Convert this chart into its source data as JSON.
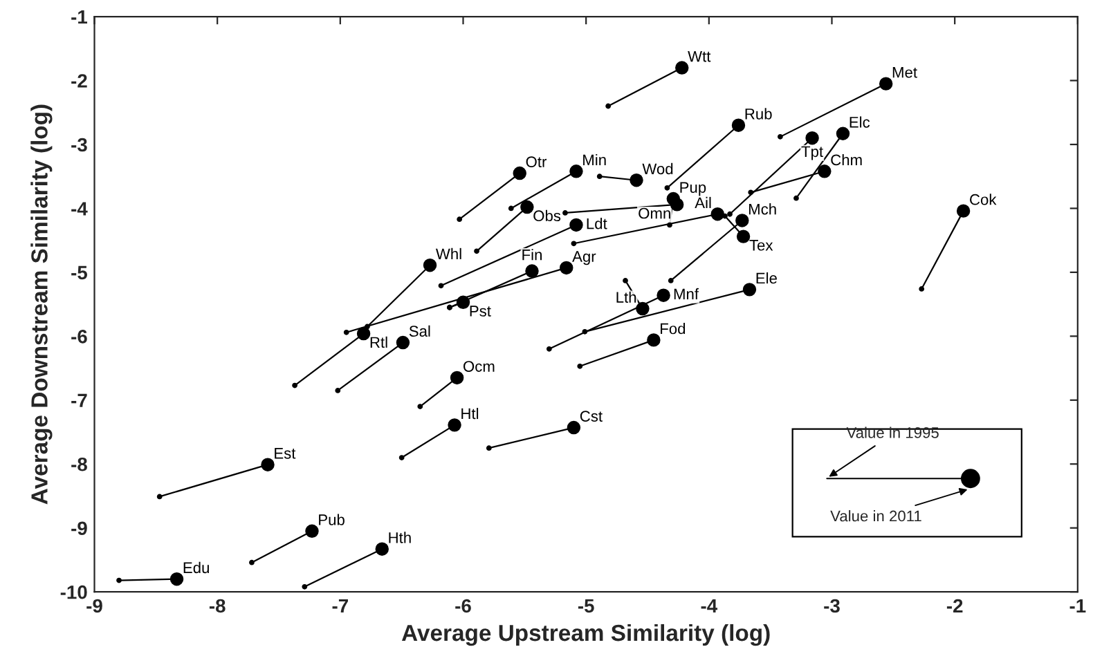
{
  "chart_data": {
    "type": "line",
    "xlabel": "Average Upstream Similarity (log)",
    "ylabel": "Average Downstream Similarity (log)",
    "xlim": [
      -9,
      -1
    ],
    "ylim": [
      -10,
      -1
    ],
    "xticks": [
      -9,
      -8,
      -7,
      -6,
      -5,
      -4,
      -3,
      -2,
      -1
    ],
    "yticks": [
      -10,
      -9,
      -8,
      -7,
      -6,
      -5,
      -4,
      -3,
      -2,
      -1
    ],
    "grid": false,
    "legend": false,
    "marker": "circle",
    "line_style": "solid",
    "annotations": [
      "Value in 1995",
      "Value in 2011"
    ],
    "series": [
      {
        "name": "Wtt",
        "color": "#000000",
        "x": [
          -4.82,
          -4.22
        ],
        "values": [
          -2.4,
          -1.8
        ]
      },
      {
        "name": "Met",
        "color": "#000000",
        "x": [
          -3.42,
          -2.56
        ],
        "values": [
          -2.88,
          -2.05
        ]
      },
      {
        "name": "Rub",
        "color": "#000000",
        "x": [
          -4.34,
          -3.76
        ],
        "values": [
          -3.68,
          -2.7
        ]
      },
      {
        "name": "Tpt",
        "color": "#000000",
        "x": [
          -3.83,
          -3.16
        ],
        "values": [
          -4.09,
          -2.9
        ]
      },
      {
        "name": "Elc",
        "color": "#000000",
        "x": [
          -3.29,
          -2.91
        ],
        "values": [
          -3.84,
          -2.83
        ]
      },
      {
        "name": "Chm",
        "color": "#000000",
        "x": [
          -3.66,
          -3.06
        ],
        "values": [
          -3.75,
          -3.42
        ]
      },
      {
        "name": "Otr",
        "color": "#000000",
        "x": [
          -6.03,
          -5.54
        ],
        "values": [
          -4.17,
          -3.45
        ]
      },
      {
        "name": "Min",
        "color": "#000000",
        "x": [
          -5.61,
          -5.08
        ],
        "values": [
          -4.0,
          -3.42
        ]
      },
      {
        "name": "Obs",
        "color": "#000000",
        "x": [
          -5.89,
          -5.48
        ],
        "values": [
          -4.67,
          -3.98
        ]
      },
      {
        "name": "Wod",
        "color": "#000000",
        "x": [
          -4.89,
          -4.59
        ],
        "values": [
          -3.5,
          -3.56
        ]
      },
      {
        "name": "Pup",
        "color": "#000000",
        "x": [
          -4.32,
          -4.29
        ],
        "values": [
          -4.26,
          -3.85
        ]
      },
      {
        "name": "Omn",
        "color": "#000000",
        "x": [
          -5.17,
          -4.26
        ],
        "values": [
          -4.07,
          -3.94
        ]
      },
      {
        "name": "Ldt",
        "color": "#000000",
        "x": [
          -6.18,
          -5.08
        ],
        "values": [
          -5.21,
          -4.26
        ]
      },
      {
        "name": "Ail",
        "color": "#000000",
        "x": [
          -5.1,
          -3.93
        ],
        "values": [
          -4.55,
          -4.09
        ]
      },
      {
        "name": "Mch",
        "color": "#000000",
        "x": [
          -4.31,
          -3.73
        ],
        "values": [
          -5.13,
          -4.19
        ]
      },
      {
        "name": "Tex",
        "color": "#000000",
        "x": [
          -3.87,
          -3.72
        ],
        "values": [
          -4.12,
          -4.44
        ]
      },
      {
        "name": "Cok",
        "color": "#000000",
        "x": [
          -2.27,
          -1.93
        ],
        "values": [
          -5.26,
          -4.04
        ]
      },
      {
        "name": "Whl",
        "color": "#000000",
        "x": [
          -6.78,
          -6.27
        ],
        "values": [
          -5.85,
          -4.89
        ]
      },
      {
        "name": "Fin",
        "color": "#000000",
        "x": [
          -6.11,
          -5.44
        ],
        "values": [
          -5.55,
          -4.98
        ]
      },
      {
        "name": "Agr",
        "color": "#000000",
        "x": [
          -6.95,
          -5.16
        ],
        "values": [
          -5.94,
          -4.93
        ]
      },
      {
        "name": "Pst",
        "color": "#000000",
        "x": [
          -6.11,
          -6.0
        ],
        "values": [
          -5.55,
          -5.47
        ]
      },
      {
        "name": "Rtl",
        "color": "#000000",
        "x": [
          -7.37,
          -6.81
        ],
        "values": [
          -6.77,
          -5.96
        ]
      },
      {
        "name": "Sal",
        "color": "#000000",
        "x": [
          -7.02,
          -6.49
        ],
        "values": [
          -6.85,
          -6.1
        ]
      },
      {
        "name": "Lth",
        "color": "#000000",
        "x": [
          -4.68,
          -4.54
        ],
        "values": [
          -5.13,
          -5.57
        ]
      },
      {
        "name": "Mnf",
        "color": "#000000",
        "x": [
          -5.3,
          -4.37
        ],
        "values": [
          -6.2,
          -5.36
        ]
      },
      {
        "name": "Ele",
        "color": "#000000",
        "x": [
          -5.01,
          -3.67
        ],
        "values": [
          -5.93,
          -5.27
        ]
      },
      {
        "name": "Fod",
        "color": "#000000",
        "x": [
          -5.05,
          -4.45
        ],
        "values": [
          -6.47,
          -6.06
        ]
      },
      {
        "name": "Ocm",
        "color": "#000000",
        "x": [
          -6.35,
          -6.05
        ],
        "values": [
          -7.1,
          -6.65
        ]
      },
      {
        "name": "Htl",
        "color": "#000000",
        "x": [
          -6.5,
          -6.07
        ],
        "values": [
          -7.9,
          -7.39
        ]
      },
      {
        "name": "Cst",
        "color": "#000000",
        "x": [
          -5.79,
          -5.1
        ],
        "values": [
          -7.75,
          -7.43
        ]
      },
      {
        "name": "Est",
        "color": "#000000",
        "x": [
          -8.47,
          -7.59
        ],
        "values": [
          -8.51,
          -8.01
        ]
      },
      {
        "name": "Pub",
        "color": "#000000",
        "x": [
          -7.72,
          -7.23
        ],
        "values": [
          -9.54,
          -9.05
        ]
      },
      {
        "name": "Hth",
        "color": "#000000",
        "x": [
          -7.29,
          -6.66
        ],
        "values": [
          -9.92,
          -9.33
        ]
      },
      {
        "name": "Edu",
        "color": "#000000",
        "x": [
          -8.8,
          -8.33
        ],
        "values": [
          -9.82,
          -9.8
        ]
      }
    ]
  }
}
